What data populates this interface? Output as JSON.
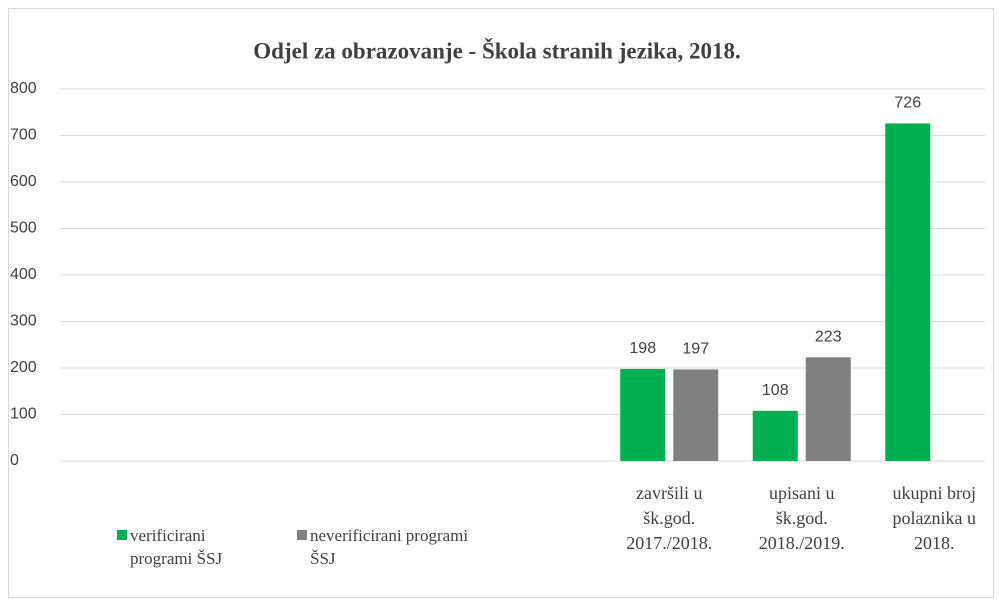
{
  "chart_data": {
    "type": "bar",
    "title": "Odjel za obrazovanje - Škola stranih jezika, 2018.",
    "categories": [
      null,
      null,
      null,
      null,
      "završili u\nšk.god.\n2017./2018.",
      "upisani u\nšk.god.\n2018./2019.",
      "ukupni broj\npolaznika u\n2018."
    ],
    "series": [
      {
        "name": "verificirani\nprogrami ŠSJ",
        "color": "#00b050",
        "values": [
          null,
          null,
          null,
          null,
          198,
          108,
          726
        ]
      },
      {
        "name": "neverificirani programi\nŠSJ",
        "color": "#808080",
        "values": [
          null,
          null,
          null,
          null,
          197,
          223,
          null
        ]
      }
    ],
    "ylim": [
      0,
      800
    ],
    "yticks": [
      0,
      100,
      200,
      300,
      400,
      500,
      600,
      700,
      800
    ],
    "grid": true
  }
}
